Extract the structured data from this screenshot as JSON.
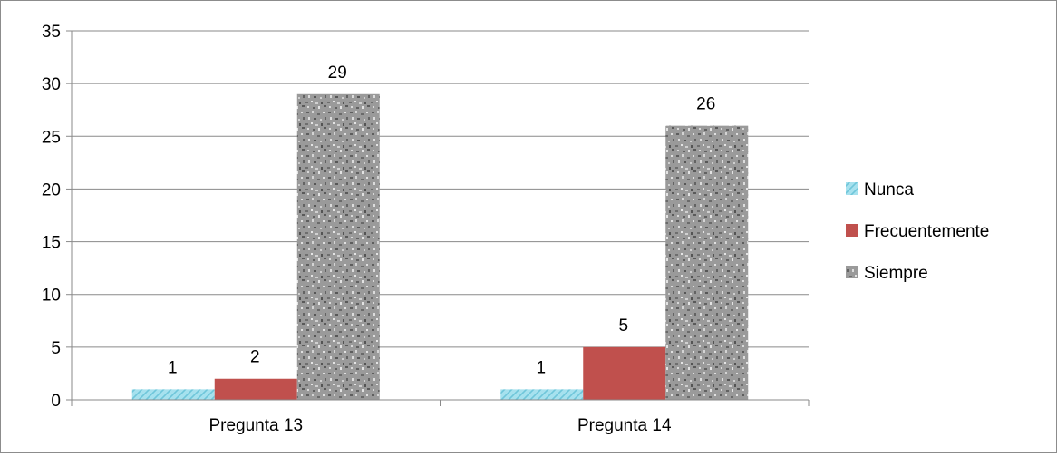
{
  "chart_data": {
    "type": "bar",
    "categories": [
      "Pregunta 13",
      "Pregunta 14"
    ],
    "series": [
      {
        "name": "Nunca",
        "values": [
          1,
          1
        ],
        "color": "#8fd9e8",
        "pattern": "diagonal-light"
      },
      {
        "name": "Frecuentemente",
        "values": [
          2,
          5
        ],
        "color": "#c0504d",
        "pattern": "solid"
      },
      {
        "name": "Siempre",
        "values": [
          29,
          26
        ],
        "color": "#9a9a9a",
        "pattern": "granite"
      }
    ],
    "yticks": [
      0,
      5,
      10,
      15,
      20,
      25,
      30,
      35
    ],
    "ylim": [
      0,
      35
    ],
    "grid": true,
    "legend_position": "right"
  }
}
